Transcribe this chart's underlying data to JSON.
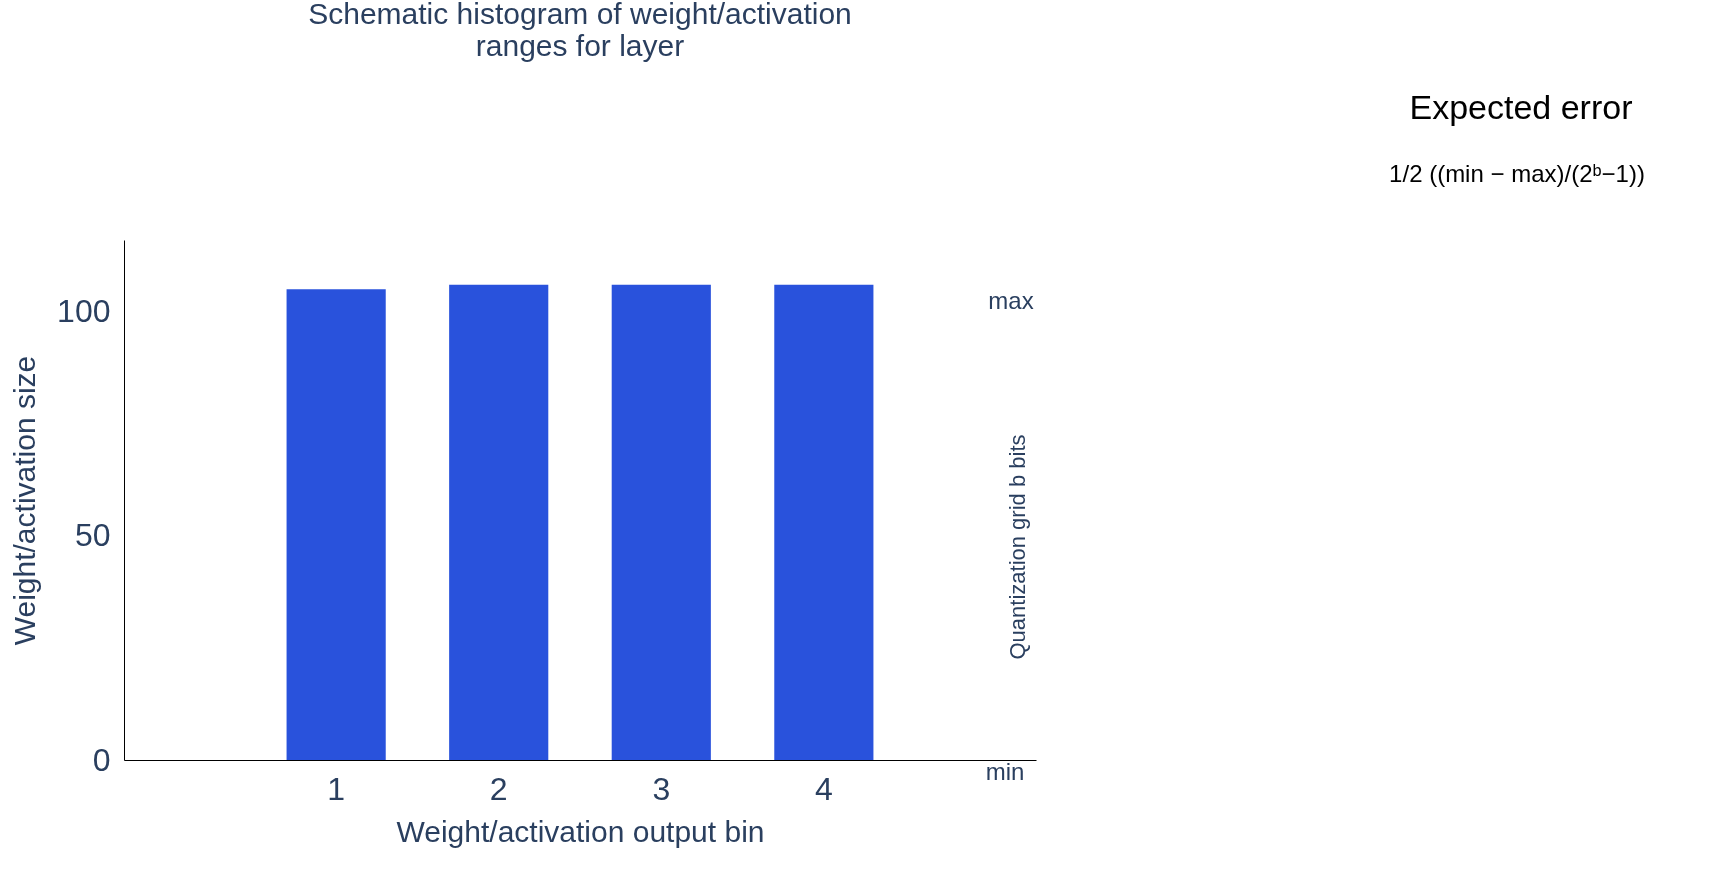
{
  "chart_data": {
    "type": "bar",
    "title": [
      "Schematic histogram of weight/activation",
      "ranges for layer"
    ],
    "xlabel": "Weight/activation output bin",
    "ylabel": "Weight/activation size",
    "categories": [
      "1",
      "2",
      "3",
      "4"
    ],
    "values": [
      105,
      106,
      106,
      106
    ],
    "color": "#2952dc",
    "ylim": [
      0,
      116
    ],
    "yticks": [
      0,
      50,
      100
    ],
    "grid": false,
    "annotations": [
      "max",
      "min",
      "Quantization grid b bits",
      "Expected error",
      "1/2 ((min − max)/(2ᵇ−1))"
    ]
  }
}
